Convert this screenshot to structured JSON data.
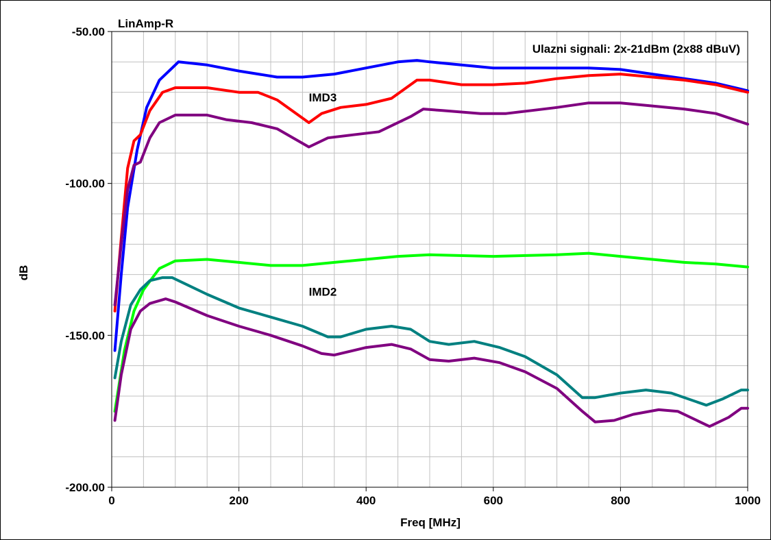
{
  "chart_data": {
    "type": "line",
    "title": "LinAmp-R",
    "subtitle": "Ulazni signali: 2x-21dBm (2x88 dBuV)",
    "xlabel": "Freq [MHz]",
    "ylabel": "dB",
    "xlim": [
      0,
      1000
    ],
    "ylim": [
      -200,
      -50
    ],
    "grid": true,
    "x_ticks": [
      "0",
      "200",
      "400",
      "600",
      "800",
      "1000"
    ],
    "y_ticks": [
      "-50.00",
      "-100.00",
      "-150.00",
      "-200.00"
    ],
    "annotations": [
      {
        "text": "IMD3",
        "x": 310,
        "y": -73
      },
      {
        "text": "IMD2",
        "x": 310,
        "y": -137
      }
    ],
    "series": [
      {
        "color": "#0000ff",
        "points": [
          [
            5,
            -155
          ],
          [
            15,
            -130
          ],
          [
            25,
            -108
          ],
          [
            40,
            -89
          ],
          [
            55,
            -75
          ],
          [
            75,
            -66
          ],
          [
            100,
            -61
          ],
          [
            105,
            -60
          ],
          [
            150,
            -61
          ],
          [
            200,
            -63
          ],
          [
            260,
            -65
          ],
          [
            300,
            -65
          ],
          [
            350,
            -64
          ],
          [
            400,
            -62
          ],
          [
            450,
            -60
          ],
          [
            480,
            -59.5
          ],
          [
            500,
            -60
          ],
          [
            600,
            -62
          ],
          [
            700,
            -62
          ],
          [
            750,
            -62
          ],
          [
            800,
            -62.5
          ],
          [
            850,
            -64
          ],
          [
            900,
            -65.5
          ],
          [
            950,
            -67
          ],
          [
            1000,
            -69.5
          ]
        ]
      },
      {
        "color": "#ff0000",
        "points": [
          [
            5,
            -142
          ],
          [
            15,
            -118
          ],
          [
            25,
            -95
          ],
          [
            35,
            -86
          ],
          [
            45,
            -84
          ],
          [
            60,
            -76
          ],
          [
            80,
            -70
          ],
          [
            100,
            -68.5
          ],
          [
            150,
            -68.5
          ],
          [
            200,
            -70
          ],
          [
            230,
            -70
          ],
          [
            260,
            -72.5
          ],
          [
            310,
            -80
          ],
          [
            330,
            -77
          ],
          [
            360,
            -75
          ],
          [
            400,
            -74
          ],
          [
            440,
            -72
          ],
          [
            480,
            -66
          ],
          [
            500,
            -66
          ],
          [
            550,
            -67.5
          ],
          [
            600,
            -67.5
          ],
          [
            650,
            -67
          ],
          [
            700,
            -65.5
          ],
          [
            750,
            -64.5
          ],
          [
            800,
            -64
          ],
          [
            850,
            -65
          ],
          [
            900,
            -66
          ],
          [
            950,
            -67.5
          ],
          [
            1000,
            -70
          ]
        ]
      },
      {
        "color": "#800080",
        "points": [
          [
            5,
            -140
          ],
          [
            15,
            -120
          ],
          [
            25,
            -102
          ],
          [
            35,
            -94
          ],
          [
            45,
            -93
          ],
          [
            60,
            -85
          ],
          [
            75,
            -80
          ],
          [
            100,
            -77.5
          ],
          [
            150,
            -77.5
          ],
          [
            180,
            -79
          ],
          [
            220,
            -80
          ],
          [
            260,
            -82
          ],
          [
            310,
            -88
          ],
          [
            340,
            -85
          ],
          [
            380,
            -84
          ],
          [
            420,
            -83
          ],
          [
            470,
            -78
          ],
          [
            490,
            -75.5
          ],
          [
            520,
            -76
          ],
          [
            580,
            -77
          ],
          [
            620,
            -77
          ],
          [
            660,
            -76
          ],
          [
            700,
            -75
          ],
          [
            750,
            -73.5
          ],
          [
            800,
            -73.5
          ],
          [
            850,
            -74.5
          ],
          [
            900,
            -75.5
          ],
          [
            950,
            -77
          ],
          [
            1000,
            -80.5
          ]
        ]
      },
      {
        "color": "#00ff00",
        "points": [
          [
            5,
            -175
          ],
          [
            20,
            -155
          ],
          [
            35,
            -142
          ],
          [
            50,
            -135
          ],
          [
            75,
            -128
          ],
          [
            100,
            -125.5
          ],
          [
            150,
            -125
          ],
          [
            200,
            -126
          ],
          [
            250,
            -127
          ],
          [
            300,
            -127
          ],
          [
            350,
            -126
          ],
          [
            400,
            -125
          ],
          [
            450,
            -124
          ],
          [
            500,
            -123.5
          ],
          [
            600,
            -124
          ],
          [
            700,
            -123.5
          ],
          [
            750,
            -123
          ],
          [
            800,
            -124
          ],
          [
            850,
            -125
          ],
          [
            900,
            -126
          ],
          [
            950,
            -126.5
          ],
          [
            1000,
            -127.5
          ]
        ]
      },
      {
        "color": "#008080",
        "points": [
          [
            5,
            -164
          ],
          [
            15,
            -152
          ],
          [
            30,
            -140
          ],
          [
            45,
            -135
          ],
          [
            60,
            -132
          ],
          [
            80,
            -131
          ],
          [
            95,
            -131
          ],
          [
            120,
            -133.5
          ],
          [
            150,
            -136.5
          ],
          [
            200,
            -141
          ],
          [
            250,
            -144
          ],
          [
            300,
            -147
          ],
          [
            340,
            -150.5
          ],
          [
            360,
            -150.5
          ],
          [
            400,
            -148
          ],
          [
            440,
            -147
          ],
          [
            470,
            -148
          ],
          [
            500,
            -152
          ],
          [
            530,
            -153
          ],
          [
            570,
            -152
          ],
          [
            610,
            -154
          ],
          [
            650,
            -157
          ],
          [
            700,
            -163
          ],
          [
            740,
            -170.5
          ],
          [
            760,
            -170.5
          ],
          [
            800,
            -169
          ],
          [
            840,
            -168
          ],
          [
            880,
            -169
          ],
          [
            935,
            -173
          ],
          [
            960,
            -171
          ],
          [
            990,
            -168
          ],
          [
            1000,
            -168
          ]
        ]
      },
      {
        "color": "#800080",
        "points": [
          [
            5,
            -178
          ],
          [
            15,
            -163
          ],
          [
            30,
            -148
          ],
          [
            45,
            -142
          ],
          [
            60,
            -139.5
          ],
          [
            85,
            -138
          ],
          [
            100,
            -139
          ],
          [
            150,
            -143.5
          ],
          [
            200,
            -147
          ],
          [
            250,
            -150
          ],
          [
            300,
            -153.5
          ],
          [
            330,
            -156
          ],
          [
            350,
            -156.5
          ],
          [
            400,
            -154
          ],
          [
            440,
            -153
          ],
          [
            470,
            -154.5
          ],
          [
            500,
            -158
          ],
          [
            530,
            -158.5
          ],
          [
            570,
            -157.5
          ],
          [
            610,
            -159
          ],
          [
            650,
            -162
          ],
          [
            700,
            -167.5
          ],
          [
            740,
            -175
          ],
          [
            760,
            -178.5
          ],
          [
            790,
            -178
          ],
          [
            820,
            -176
          ],
          [
            860,
            -174.5
          ],
          [
            890,
            -175
          ],
          [
            940,
            -180
          ],
          [
            970,
            -177
          ],
          [
            990,
            -174
          ],
          [
            1000,
            -174
          ]
        ]
      }
    ]
  }
}
